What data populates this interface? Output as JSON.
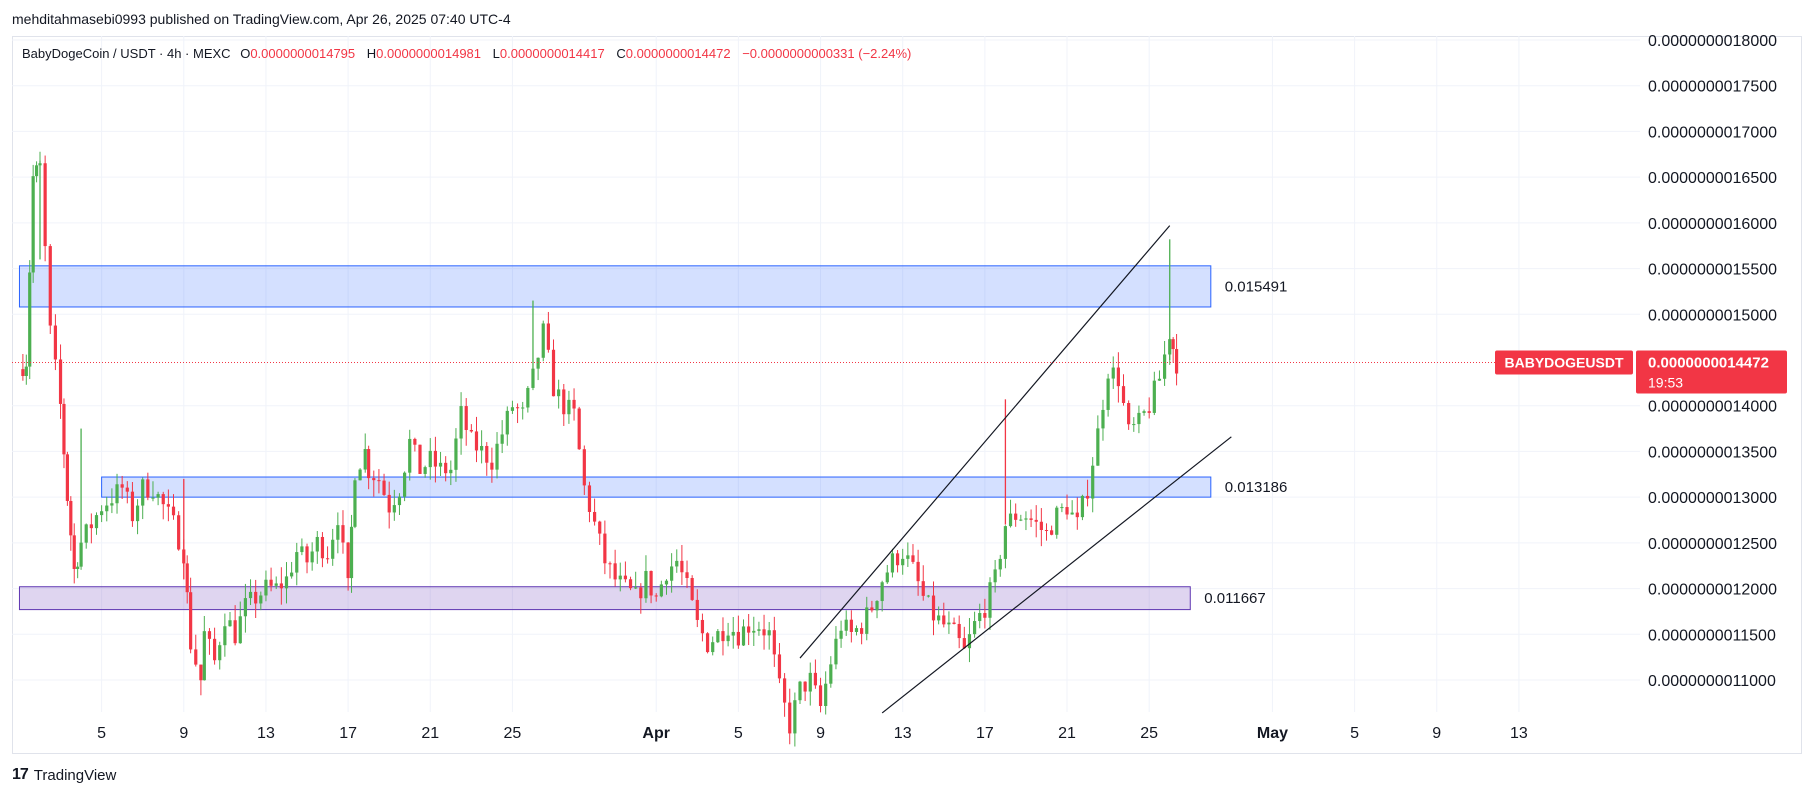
{
  "attribution": "mehditahmasebi0993 published on TradingView.com, Apr 26, 2025 07:40 UTC-4",
  "legend": {
    "symbol": "BabyDogeCoin / USDT · 4h · MEXC",
    "o_label": "O",
    "o_value": "0.0000000014795",
    "h_label": "H",
    "h_value": "0.0000000014981",
    "l_label": "L",
    "l_value": "0.0000000014417",
    "c_label": "C",
    "c_value": "0.0000000014472",
    "change": "−0.0000000000331 (−2.24%)"
  },
  "footer": {
    "logo_mark": "17",
    "logo_text": "TradingView"
  },
  "colors": {
    "up": "#4caf50",
    "down": "#f23645",
    "zone_blue": "#2962ff",
    "zone_purple": "#7e57c2",
    "grid": "#f0f3fa"
  },
  "chart_data": {
    "type": "candlestick",
    "symbol": "BABYDOGEUSDT",
    "timeframe": "4h",
    "exchange": "MEXC",
    "y_scale": 1e-09,
    "ylim": [
      1.05e-09,
      1.82e-09
    ],
    "y_tick_labels": [
      "0.0000000018000",
      "0.0000000017500",
      "0.0000000017000",
      "0.0000000016500",
      "0.0000000016000",
      "0.0000000015500",
      "0.0000000015000",
      "0.0000000014000",
      "0.0000000013500",
      "0.0000000013000",
      "0.0000000012500",
      "0.0000000012000",
      "0.0000000011500",
      "0.0000000011000"
    ],
    "y_tick_values": [
      1.8,
      1.75,
      1.7,
      1.65,
      1.6,
      1.55,
      1.5,
      1.4,
      1.35,
      1.3,
      1.25,
      1.2,
      1.15,
      1.1
    ],
    "x_tick_labels": [
      "5",
      "9",
      "13",
      "17",
      "21",
      "25",
      "Apr",
      "5",
      "9",
      "13",
      "17",
      "21",
      "25",
      "May",
      "5",
      "9",
      "13"
    ],
    "x_tick_dates": [
      "2025-03-05",
      "2025-03-09",
      "2025-03-13",
      "2025-03-17",
      "2025-03-21",
      "2025-03-25",
      "2025-04-01",
      "2025-04-05",
      "2025-04-09",
      "2025-04-13",
      "2025-04-17",
      "2025-04-21",
      "2025-04-25",
      "2025-05-01",
      "2025-05-05",
      "2025-05-09",
      "2025-05-13"
    ],
    "x_start": "2025-03-02",
    "x_end": "2025-05-15",
    "current_price": {
      "label": "BABYDOGEUSDT",
      "value": "0.0000000014472",
      "countdown": "19:53",
      "level": 1.4472
    },
    "zones": [
      {
        "label": "0.015491",
        "from_date": "2025-03-01",
        "to_date": "2025-04-28",
        "low": 1.508,
        "high": 1.553,
        "color": "blue"
      },
      {
        "label": "0.013186",
        "from_date": "2025-03-05",
        "to_date": "2025-04-28",
        "low": 1.3,
        "high": 1.322,
        "color": "blue"
      },
      {
        "label": "0.011667",
        "from_date": "2025-03-01",
        "to_date": "2025-04-27",
        "low": 1.177,
        "high": 1.202,
        "color": "purple"
      }
    ],
    "trendlines": [
      {
        "from": [
          "2025-04-08",
          1.124
        ],
        "to": [
          "2025-04-26",
          1.597
        ]
      },
      {
        "from": [
          "2025-04-12",
          1.064
        ],
        "to": [
          "2025-04-29",
          1.366
        ]
      }
    ],
    "path": [
      [
        "2025-03-01",
        1.44
      ],
      [
        "2025-03-01T08",
        1.45
      ],
      [
        "2025-03-01T16",
        1.65
      ],
      [
        "2025-03-02",
        1.66
      ],
      [
        "2025-03-02T12",
        1.48
      ],
      [
        "2025-03-03",
        1.4
      ],
      [
        "2025-03-03T08",
        1.3
      ],
      [
        "2025-03-03T16",
        1.22
      ],
      [
        "2025-03-04",
        1.25
      ],
      [
        "2025-03-04T12",
        1.27
      ],
      [
        "2025-03-05",
        1.29
      ],
      [
        "2025-03-05T12",
        1.3
      ],
      [
        "2025-03-06",
        1.31
      ],
      [
        "2025-03-06T12",
        1.28
      ],
      [
        "2025-03-07",
        1.31
      ],
      [
        "2025-03-07T12",
        1.31
      ],
      [
        "2025-03-08",
        1.29
      ],
      [
        "2025-03-08T12",
        1.27
      ],
      [
        "2025-03-09",
        1.24
      ],
      [
        "2025-03-09T08",
        1.14
      ],
      [
        "2025-03-09T20",
        1.1
      ],
      [
        "2025-03-10",
        1.15
      ],
      [
        "2025-03-10T12",
        1.12
      ],
      [
        "2025-03-11",
        1.17
      ],
      [
        "2025-03-11T12",
        1.15
      ],
      [
        "2025-03-12",
        1.18
      ],
      [
        "2025-03-12T12",
        1.19
      ],
      [
        "2025-03-13",
        1.2
      ],
      [
        "2025-03-13T12",
        1.2
      ],
      [
        "2025-03-14",
        1.21
      ],
      [
        "2025-03-14T12",
        1.24
      ],
      [
        "2025-03-15",
        1.23
      ],
      [
        "2025-03-15T12",
        1.25
      ],
      [
        "2025-03-16",
        1.24
      ],
      [
        "2025-03-16T12",
        1.28
      ],
      [
        "2025-03-17",
        1.2
      ],
      [
        "2025-03-17T08",
        1.33
      ],
      [
        "2025-03-17T20",
        1.35
      ],
      [
        "2025-03-18",
        1.33
      ],
      [
        "2025-03-18T12",
        1.32
      ],
      [
        "2025-03-19",
        1.29
      ],
      [
        "2025-03-19T12",
        1.31
      ],
      [
        "2025-03-20",
        1.36
      ],
      [
        "2025-03-20T12",
        1.33
      ],
      [
        "2025-03-21",
        1.34
      ],
      [
        "2025-03-21T12",
        1.33
      ],
      [
        "2025-03-22",
        1.33
      ],
      [
        "2025-03-22T12",
        1.39
      ],
      [
        "2025-03-23",
        1.36
      ],
      [
        "2025-03-23T12",
        1.35
      ],
      [
        "2025-03-24",
        1.34
      ],
      [
        "2025-03-24T12",
        1.37
      ],
      [
        "2025-03-25",
        1.4
      ],
      [
        "2025-03-25T12",
        1.39
      ],
      [
        "2025-03-26",
        1.43
      ],
      [
        "2025-03-26T12",
        1.48
      ],
      [
        "2025-03-27",
        1.42
      ],
      [
        "2025-03-27T12",
        1.4
      ],
      [
        "2025-03-28",
        1.39
      ],
      [
        "2025-03-28T12",
        1.31
      ],
      [
        "2025-03-29",
        1.27
      ],
      [
        "2025-03-29T12",
        1.23
      ],
      [
        "2025-03-30",
        1.21
      ],
      [
        "2025-03-30T12",
        1.2
      ],
      [
        "2025-03-31",
        1.19
      ],
      [
        "2025-03-31T12",
        1.21
      ],
      [
        "2025-04-01",
        1.19
      ],
      [
        "2025-04-01T12",
        1.22
      ],
      [
        "2025-04-02",
        1.23
      ],
      [
        "2025-04-02T12",
        1.2
      ],
      [
        "2025-04-03",
        1.16
      ],
      [
        "2025-04-03T12",
        1.14
      ],
      [
        "2025-04-04",
        1.15
      ],
      [
        "2025-04-04T12",
        1.16
      ],
      [
        "2025-04-05",
        1.15
      ],
      [
        "2025-04-05T12",
        1.16
      ],
      [
        "2025-04-06",
        1.16
      ],
      [
        "2025-04-06T12",
        1.15
      ],
      [
        "2025-04-07",
        1.09
      ],
      [
        "2025-04-07T12",
        1.05
      ],
      [
        "2025-04-08",
        1.09
      ],
      [
        "2025-04-08T12",
        1.1
      ],
      [
        "2025-04-09",
        1.07
      ],
      [
        "2025-04-09T12",
        1.12
      ],
      [
        "2025-04-10",
        1.16
      ],
      [
        "2025-04-10T12",
        1.15
      ],
      [
        "2025-04-11",
        1.16
      ],
      [
        "2025-04-11T12",
        1.18
      ],
      [
        "2025-04-12",
        1.21
      ],
      [
        "2025-04-12T12",
        1.23
      ],
      [
        "2025-04-13",
        1.24
      ],
      [
        "2025-04-13T12",
        1.22
      ],
      [
        "2025-04-14",
        1.19
      ],
      [
        "2025-04-14T12",
        1.17
      ],
      [
        "2025-04-15",
        1.16
      ],
      [
        "2025-04-15T12",
        1.15
      ],
      [
        "2025-04-16",
        1.13
      ],
      [
        "2025-04-16T12",
        1.16
      ],
      [
        "2025-04-17",
        1.18
      ],
      [
        "2025-04-17T12",
        1.21
      ],
      [
        "2025-04-18",
        1.27
      ],
      [
        "2025-04-18T12",
        1.28
      ],
      [
        "2025-04-19",
        1.28
      ],
      [
        "2025-04-19T12",
        1.27
      ],
      [
        "2025-04-20",
        1.26
      ],
      [
        "2025-04-20T12",
        1.28
      ],
      [
        "2025-04-21",
        1.29
      ],
      [
        "2025-04-21T12",
        1.27
      ],
      [
        "2025-04-22",
        1.31
      ],
      [
        "2025-04-22T12",
        1.37
      ],
      [
        "2025-04-23",
        1.44
      ],
      [
        "2025-04-23T12",
        1.43
      ],
      [
        "2025-04-24",
        1.37
      ],
      [
        "2025-04-24T12",
        1.38
      ],
      [
        "2025-04-25",
        1.4
      ],
      [
        "2025-04-25T12",
        1.43
      ],
      [
        "2025-04-26",
        1.48
      ],
      [
        "2025-04-26T08",
        1.4472
      ]
    ],
    "spikes": [
      {
        "date": "2025-04-18",
        "high": 1.407,
        "low": 1.27,
        "color": "down"
      },
      {
        "date": "2025-04-26",
        "high": 1.582,
        "low": 1.45,
        "color": "up"
      },
      {
        "date": "2025-03-26",
        "high": 1.515,
        "low": 1.42,
        "color": "up"
      },
      {
        "date": "2025-03-02",
        "high": 1.668,
        "low": 1.56,
        "color": "up"
      },
      {
        "date": "2025-03-04",
        "high": 1.375,
        "low": 1.245,
        "color": "up"
      },
      {
        "date": "2025-03-09",
        "high": 1.32,
        "low": 1.21,
        "color": "down"
      }
    ]
  }
}
